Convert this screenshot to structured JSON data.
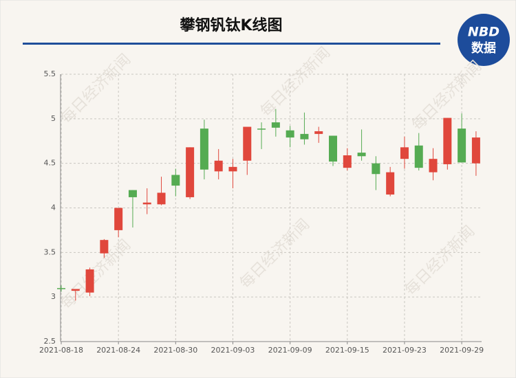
{
  "logo": {
    "brand": "NBD",
    "text": "数据"
  },
  "watermark": "每日经济新闻",
  "chart_data": {
    "type": "candlestick",
    "title": "攀钢钒钛K线图",
    "categories": [
      "2021-08-18",
      null,
      null,
      null,
      "2021-08-24",
      null,
      null,
      null,
      "2021-08-30",
      null,
      null,
      null,
      "2021-09-03",
      null,
      null,
      null,
      "2021-09-09",
      null,
      null,
      null,
      "2021-09-15",
      null,
      null,
      null,
      "2021-09-23",
      null,
      null,
      null,
      "2021-09-29",
      null
    ],
    "open": [
      3.1,
      3.07,
      3.05,
      3.49,
      3.75,
      4.2,
      4.04,
      4.04,
      4.37,
      4.12,
      4.89,
      4.41,
      4.41,
      4.53,
      4.89,
      4.96,
      4.87,
      4.83,
      4.83,
      4.81,
      4.45,
      4.62,
      4.5,
      4.15,
      4.55,
      4.7,
      4.4,
      4.49,
      4.89,
      4.5
    ],
    "high": [
      3.13,
      3.09,
      3.33,
      3.65,
      4.0,
      4.2,
      4.22,
      4.35,
      4.44,
      4.68,
      4.99,
      4.66,
      4.55,
      4.91,
      4.96,
      5.11,
      4.92,
      5.07,
      4.91,
      4.81,
      4.67,
      4.88,
      4.58,
      4.46,
      4.8,
      4.84,
      4.67,
      5.01,
      5.06,
      4.86
    ],
    "low": [
      3.06,
      2.96,
      3.01,
      3.44,
      3.67,
      3.78,
      3.93,
      4.03,
      4.13,
      4.1,
      4.32,
      4.32,
      4.22,
      4.37,
      4.66,
      4.8,
      4.68,
      4.71,
      4.73,
      4.47,
      4.42,
      4.53,
      4.2,
      4.13,
      4.44,
      4.42,
      4.31,
      4.43,
      4.51,
      4.36
    ],
    "close": [
      3.09,
      3.09,
      3.31,
      3.64,
      4.0,
      4.12,
      4.06,
      4.17,
      4.25,
      4.68,
      4.43,
      4.53,
      4.46,
      4.91,
      4.88,
      4.9,
      4.79,
      4.77,
      4.86,
      4.52,
      4.59,
      4.58,
      4.38,
      4.4,
      4.68,
      4.45,
      4.55,
      5.01,
      4.51,
      4.79
    ],
    "up_color": "#e0473c",
    "down_color": "#55ab52",
    "ylim": [
      2.5,
      5.5
    ],
    "yticks": [
      2.5,
      3,
      3.5,
      4,
      4.5,
      5,
      5.5
    ],
    "grid": true
  }
}
